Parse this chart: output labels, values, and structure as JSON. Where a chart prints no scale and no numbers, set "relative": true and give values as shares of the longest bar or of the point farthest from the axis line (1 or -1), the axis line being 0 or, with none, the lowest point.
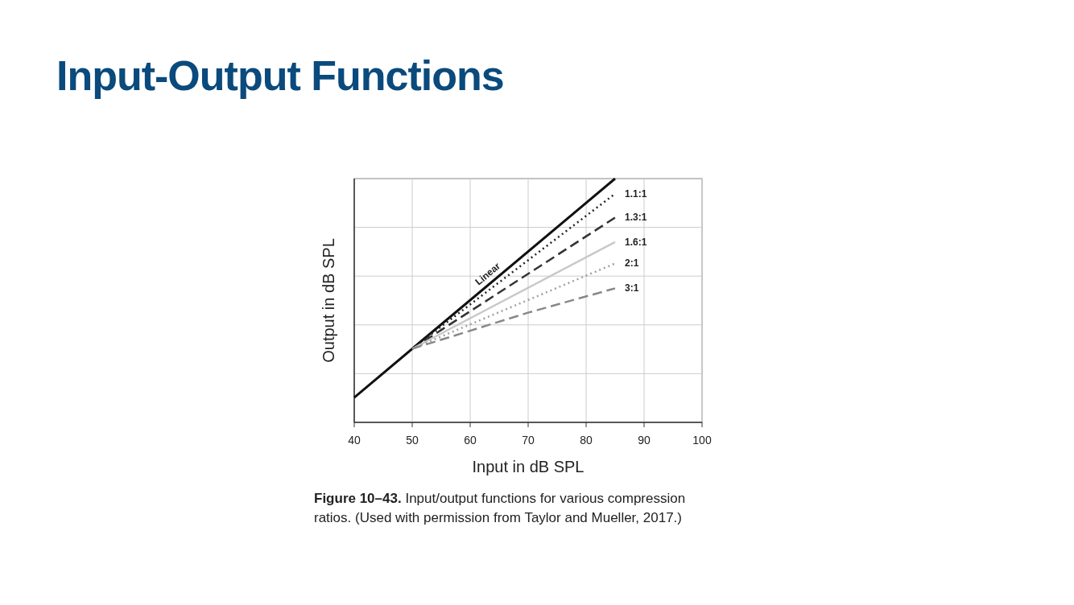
{
  "chart_data": {
    "type": "line",
    "title": "Input-Output Functions",
    "xlabel": "Input in dB SPL",
    "ylabel": "Output in dB SPL",
    "relative": true,
    "xlim": [
      40,
      100
    ],
    "xticks": [
      40,
      50,
      60,
      70,
      80,
      90,
      100
    ],
    "grid": true,
    "series": [
      {
        "name": "Linear",
        "color": "#111111",
        "line_style": "solid",
        "x": [
          40,
          50,
          85
        ],
        "values": [
          0.102,
          0.302,
          1.0
        ]
      },
      {
        "name": "1.1:1",
        "color": "#222222",
        "line_style": "dotted",
        "x": [
          50,
          85
        ],
        "values": [
          0.302,
          0.938
        ]
      },
      {
        "name": "1.3:1",
        "color": "#333333",
        "line_style": "dashed",
        "x": [
          50,
          85
        ],
        "values": [
          0.302,
          0.84
        ]
      },
      {
        "name": "1.6:1",
        "color": "#c8c8c8",
        "line_style": "solid",
        "x": [
          50,
          85
        ],
        "values": [
          0.302,
          0.74
        ]
      },
      {
        "name": "2:1",
        "color": "#a0a0a0",
        "line_style": "dotted",
        "x": [
          50,
          85
        ],
        "values": [
          0.302,
          0.652
        ]
      },
      {
        "name": "3:1",
        "color": "#888888",
        "line_style": "dashed",
        "x": [
          50,
          70,
          85
        ],
        "values": [
          0.302,
          0.45,
          0.55
        ]
      }
    ],
    "annotations": [
      "Figure 10–43.",
      "Input/output functions for various compression ratios. (Used with permission from Taylor and Mueller, 2017.)"
    ]
  }
}
